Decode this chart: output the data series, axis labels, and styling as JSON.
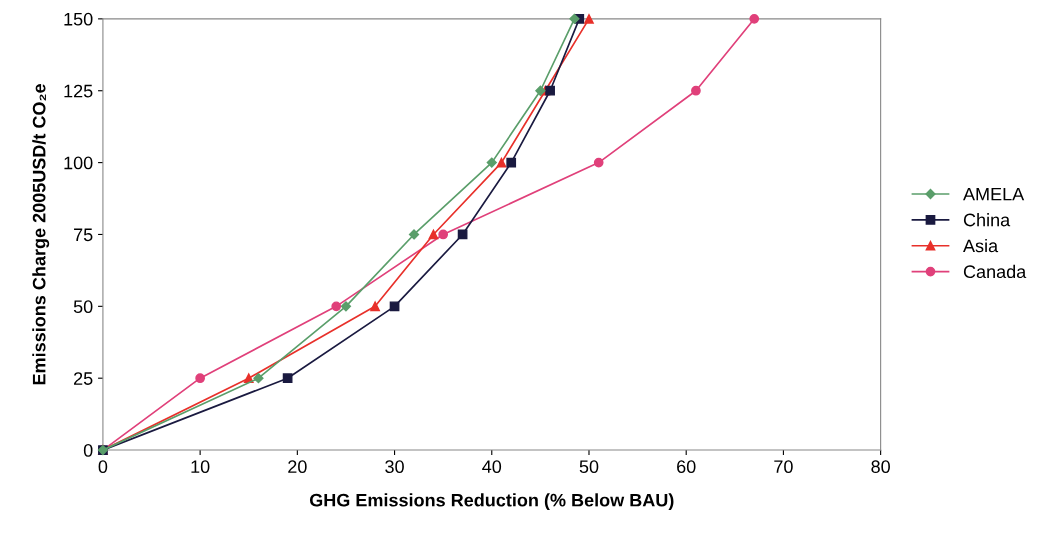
{
  "chart_data": {
    "type": "line",
    "xlabel": "GHG Emissions Reduction (% Below BAU)",
    "ylabel": "Emissions Charge 2005USD/t CO₂e",
    "xlim": [
      0,
      80
    ],
    "xticks": [
      0,
      10,
      20,
      30,
      40,
      50,
      60,
      70,
      80
    ],
    "ylim": [
      0,
      150
    ],
    "yticks": [
      0,
      25,
      50,
      75,
      100,
      125,
      150
    ],
    "grid": false,
    "legend": "right",
    "series": [
      {
        "name": "AMELA",
        "color": "#5a9e6a",
        "marker": "diamond",
        "x": [
          0,
          16,
          25,
          32,
          40,
          45,
          48.5
        ],
        "values": [
          0,
          25,
          50,
          75,
          100,
          125,
          150
        ]
      },
      {
        "name": "China",
        "color": "#1a1a40",
        "marker": "square",
        "x": [
          0,
          19,
          30,
          37,
          42,
          46,
          49
        ],
        "values": [
          0,
          25,
          50,
          75,
          100,
          125,
          150
        ]
      },
      {
        "name": "Asia",
        "color": "#e8302a",
        "marker": "triangle",
        "x": [
          0,
          15,
          28,
          34,
          41,
          45.5,
          50
        ],
        "values": [
          0,
          25,
          50,
          75,
          100,
          125,
          150
        ]
      },
      {
        "name": "Canada",
        "color": "#e0407a",
        "marker": "circle",
        "x": [
          0,
          10,
          24,
          35,
          51,
          61,
          67
        ],
        "values": [
          0,
          25,
          50,
          75,
          100,
          125,
          150
        ]
      }
    ]
  }
}
